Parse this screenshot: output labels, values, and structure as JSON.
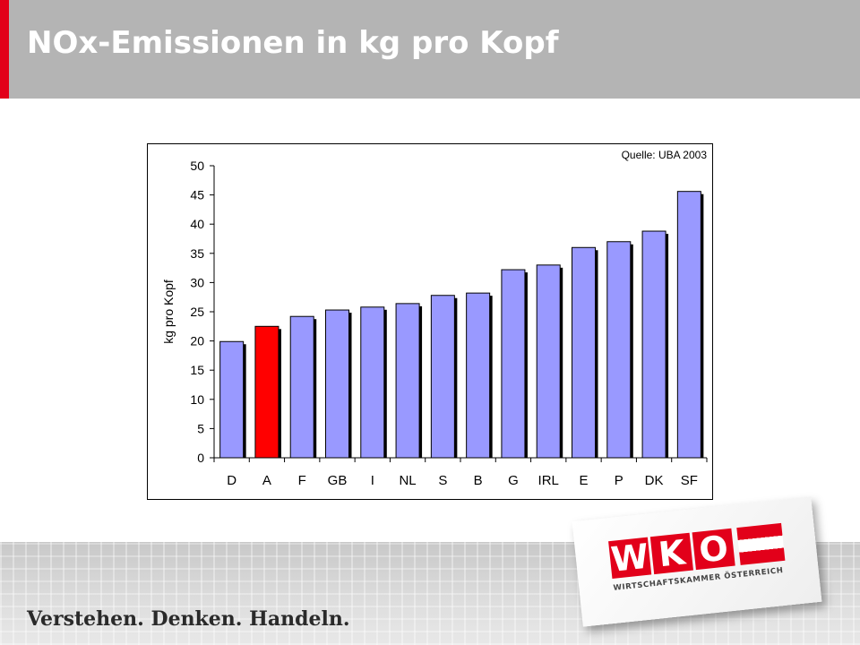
{
  "header": {
    "title": "NOx-Emissionen in kg pro Kopf"
  },
  "footer": {
    "slogan": "Verstehen. Denken. Handeln."
  },
  "logo": {
    "letters": [
      "W",
      "K",
      "O"
    ],
    "subtitle": "WIRTSCHAFTSKAMMER ÖSTERREICH",
    "color": "#e2001a"
  },
  "chart_data": {
    "type": "bar",
    "source": "Quelle: UBA 2003",
    "ylabel": "kg pro Kopf",
    "xlabel": "",
    "categories": [
      "D",
      "A",
      "F",
      "GB",
      "I",
      "NL",
      "S",
      "B",
      "G",
      "IRL",
      "E",
      "P",
      "DK",
      "SF"
    ],
    "values": [
      19.9,
      22.5,
      24.2,
      25.3,
      25.8,
      26.4,
      27.8,
      28.2,
      32.2,
      33.0,
      36.0,
      37.0,
      38.8,
      45.6
    ],
    "ylim": [
      0,
      50
    ],
    "yticks": [
      0,
      5,
      10,
      15,
      20,
      25,
      30,
      35,
      40,
      45,
      50
    ],
    "colors": {
      "default": "#9999ff",
      "highlight": "#ff0000",
      "highlight_category": "A"
    },
    "grid": false,
    "legend": "none"
  }
}
